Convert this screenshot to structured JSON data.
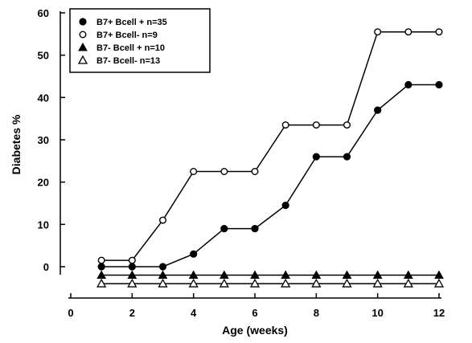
{
  "chart_data": {
    "type": "line",
    "title": "",
    "xlabel": "Age (weeks)",
    "ylabel": "Diabetes %",
    "xlim": [
      0,
      12
    ],
    "ylim": [
      -5,
      60
    ],
    "x_ticks": [
      "0",
      "2",
      "4",
      "6",
      "8",
      "10",
      "12"
    ],
    "y_ticks": [
      "0",
      "10",
      "20",
      "30",
      "40",
      "50",
      "60"
    ],
    "grid": false,
    "legend_position": "top-left",
    "x": [
      1,
      2,
      3,
      4,
      5,
      6,
      7,
      8,
      9,
      10,
      11,
      12
    ],
    "series": [
      {
        "name": "B7+ Bcell + n=35",
        "marker": "filled-circle",
        "values": [
          0,
          0,
          0,
          3,
          9,
          9,
          14.5,
          26,
          26,
          37,
          43,
          43
        ]
      },
      {
        "name": "B7+ Bcell- n=9",
        "marker": "open-circle",
        "values": [
          1.5,
          1.5,
          11,
          22.5,
          22.5,
          22.5,
          33.5,
          33.5,
          33.5,
          55.5,
          55.5,
          55.5
        ]
      },
      {
        "name": "B7- Bcell + n=10",
        "marker": "filled-triangle",
        "values": [
          -2,
          -2,
          -2,
          -2,
          -2,
          -2,
          -2,
          -2,
          -2,
          -2,
          -2,
          -2
        ]
      },
      {
        "name": "B7- Bcell- n=13",
        "marker": "open-triangle",
        "values": [
          -4,
          -4,
          -4,
          -4,
          -4,
          -4,
          -4,
          -4,
          -4,
          -4,
          -4,
          -4
        ]
      }
    ]
  }
}
